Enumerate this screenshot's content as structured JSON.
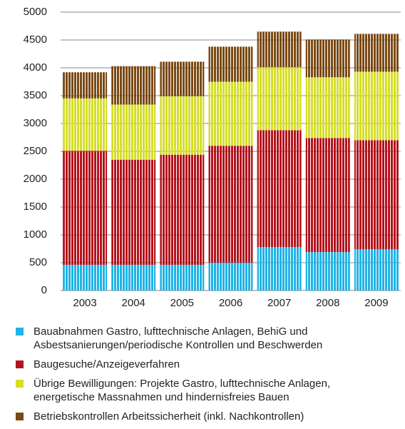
{
  "chart_data": {
    "type": "stacked_bar",
    "categories": [
      "2003",
      "2004",
      "2005",
      "2006",
      "2007",
      "2008",
      "2009"
    ],
    "series": [
      {
        "name": "Bauabnahmen Gastro, lufttechnische Anlagen, BehiG und Asbestsanierungen/periodische Kontrollen und Beschwerden",
        "color": "#1fb3e6",
        "values": [
          460,
          460,
          460,
          500,
          780,
          690,
          740
        ]
      },
      {
        "name": "Baugesuche/Anzeigeverfahren",
        "color": "#b3131c",
        "values": [
          2050,
          1890,
          1980,
          2100,
          2100,
          2050,
          1960
        ]
      },
      {
        "name": "Übrige Bewilligungen: Projekte Gastro, lufttechnische Anlagen, energetische Massnahmen und hindernisfreies Bauen",
        "color": "#d5de27",
        "values": [
          940,
          990,
          1050,
          1150,
          1130,
          1090,
          1230
        ]
      },
      {
        "name": "Betriebskontrollen Arbeitssicherheit (inkl. Nachkontrollen)",
        "color": "#7a4a14",
        "values": [
          470,
          690,
          620,
          630,
          640,
          680,
          680
        ]
      }
    ],
    "ylim": [
      0,
      5000
    ],
    "yticks": [
      0,
      500,
      1000,
      1500,
      2000,
      2500,
      3000,
      3500,
      4000,
      4500,
      5000
    ],
    "grid": true
  }
}
